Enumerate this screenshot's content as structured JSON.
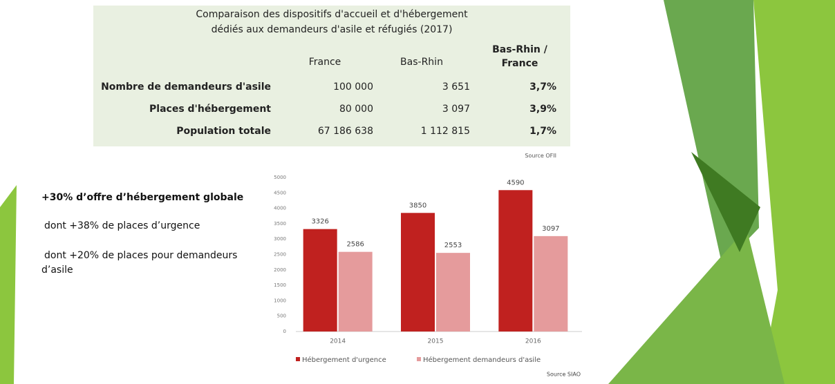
{
  "table": {
    "title": [
      "Comparaison des dispositifs d'accueil et d'hébergement",
      "dédiés aux demandeurs d'asile et réfugiés (2017)"
    ],
    "headers": [
      "France",
      "Bas-Rhin",
      "Bas-Rhin / France"
    ],
    "rows": [
      [
        "Nombre de demandeurs d'asile",
        "100 000",
        "3 651",
        "3,7%"
      ],
      [
        "Places d'hébergement",
        "80 000",
        "3 097",
        "3,9%"
      ],
      [
        "Population totale",
        "67 186 638",
        "1 112 815",
        "1,7%"
      ]
    ],
    "source": "Source OFII"
  },
  "bullets": [
    "+30% d’offre d’hébergement globale",
    "dont +38% de places d’urgence",
    "dont +20% de places pour demandeurs d’asile"
  ],
  "chart_data": {
    "type": "bar",
    "categories": [
      "2014",
      "2015",
      "2016"
    ],
    "series": [
      {
        "name": "Hébergement d'urgence",
        "color": "#c0211f",
        "values": [
          3326,
          3850,
          4590
        ]
      },
      {
        "name": "Hébergement demandeurs d'asile",
        "color": "#e59b9c",
        "values": [
          2586,
          2553,
          3097
        ]
      }
    ],
    "ylim": [
      0,
      5000
    ],
    "yticks": [
      0,
      500,
      1000,
      1500,
      2000,
      2500,
      3000,
      3500,
      4000,
      4500,
      5000
    ],
    "source": "Source SIAO"
  }
}
